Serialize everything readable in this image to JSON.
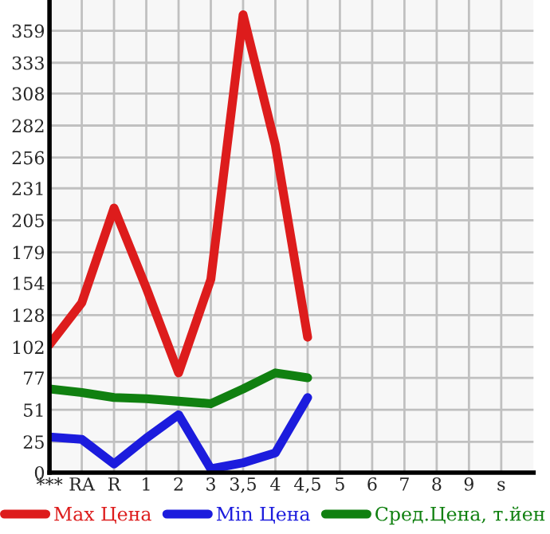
{
  "chart_data": {
    "type": "line",
    "categories": [
      "***",
      "RA",
      "R",
      "1",
      "2",
      "3",
      "3,5",
      "4",
      "4,5",
      "5",
      "6",
      "7",
      "8",
      "9",
      "s"
    ],
    "series": [
      {
        "name": "Max Цена",
        "color": "#dd1c1c",
        "values": [
          104,
          138,
          215,
          150,
          81,
          157,
          372,
          266,
          110,
          null,
          null,
          null,
          null,
          null,
          null
        ]
      },
      {
        "name": "Min Цена",
        "color": "#1c1cdd",
        "values": [
          29,
          27,
          7,
          28,
          47,
          3,
          8,
          16,
          61,
          null,
          null,
          null,
          null,
          null,
          null
        ]
      },
      {
        "name": "Сред.Цена, т.йен",
        "color": "#108010",
        "values": [
          68,
          65,
          61,
          60,
          58,
          56,
          68,
          81,
          77,
          null,
          null,
          null,
          null,
          null,
          null
        ]
      }
    ],
    "ylim": [
      0,
      384
    ],
    "yticks": [
      0,
      25,
      51,
      77,
      102,
      128,
      154,
      179,
      205,
      231,
      256,
      282,
      308,
      333,
      359
    ],
    "grid": true,
    "legend": "bottom",
    "marker": "none",
    "line_style": "solid"
  }
}
